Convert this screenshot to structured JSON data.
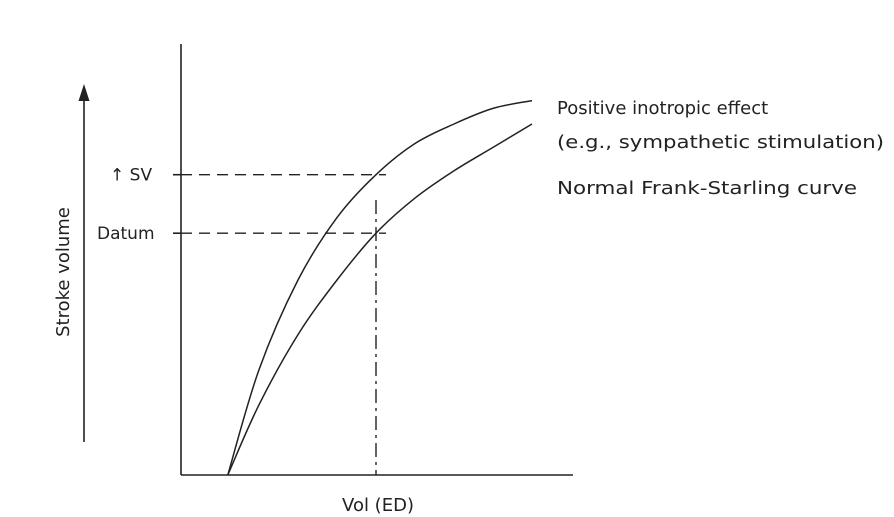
{
  "chart_data": {
    "type": "line",
    "xlabel": "Vol (ED)",
    "ylabel": "Stroke volume",
    "xlim": [
      0,
      10
    ],
    "ylim": [
      0,
      10
    ],
    "grid": false,
    "series": [
      {
        "name": "Positive inotropic effect (e.g., sympathetic stimulation)",
        "label_lines": [
          "Positive inotropic effect",
          "(e.g., sympathetic stimulation)"
        ],
        "x": [
          1.2,
          2.0,
          3.0,
          4.0,
          5.0,
          6.0,
          7.0,
          8.0,
          9.0
        ],
        "y": [
          0.0,
          2.7,
          5.0,
          6.6,
          7.7,
          8.5,
          9.0,
          9.4,
          9.6
        ]
      },
      {
        "name": "Normal Frank-Starling curve",
        "label_lines": [
          "Normal Frank-Starling curve"
        ],
        "x": [
          1.2,
          2.0,
          3.0,
          4.0,
          5.0,
          6.0,
          7.0,
          8.0,
          9.0
        ],
        "y": [
          0.0,
          1.8,
          3.6,
          5.0,
          6.2,
          7.1,
          7.8,
          8.4,
          9.0
        ]
      }
    ],
    "reference_x": 5.0,
    "annotations": [
      {
        "text": "↑ SV",
        "y": 7.7
      },
      {
        "text": "Datum",
        "y": 6.2
      }
    ]
  }
}
